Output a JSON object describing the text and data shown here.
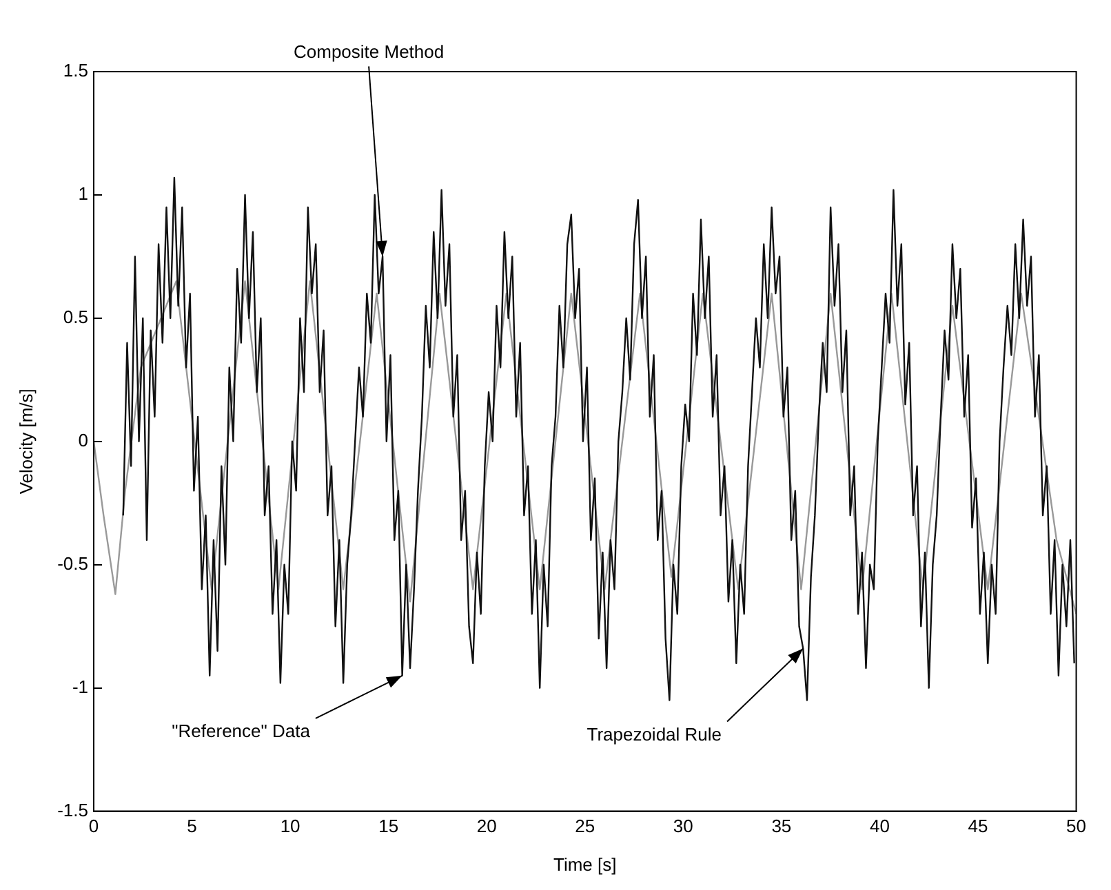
{
  "chart_data": {
    "type": "line",
    "xlabel": "Time [s]",
    "ylabel": "Velocity [m/s]",
    "xlim": [
      0,
      50
    ],
    "xticks": [
      0,
      5,
      10,
      15,
      20,
      25,
      30,
      35,
      40,
      45,
      50
    ],
    "ylim": [
      -1.5,
      1.5
    ],
    "yticks": [
      -1.5,
      -1,
      -0.5,
      0,
      0.5,
      1,
      1.5
    ],
    "grid": false,
    "legend": false,
    "marker": "none",
    "line_style": "solid",
    "annotations": [
      {
        "text": "Composite Method",
        "x": 14.7,
        "y": 0.75
      },
      {
        "text": "\"Reference\" Data",
        "x": 15.7,
        "y": -0.95
      },
      {
        "text": "Trapezoidal Rule",
        "x": 36.1,
        "y": -0.84
      }
    ],
    "series": [
      {
        "color": "#111111",
        "x": [
          1.5,
          1.7,
          1.9,
          2.1,
          2.3,
          2.5,
          2.7,
          2.9,
          3.1,
          3.3,
          3.5,
          3.7,
          3.9,
          4.1,
          4.3,
          4.5,
          4.7,
          4.9,
          5.1,
          5.3,
          5.5,
          5.7,
          5.9,
          6.1,
          6.3,
          6.5,
          6.7,
          6.9,
          7.1,
          7.3,
          7.5,
          7.7,
          7.9,
          8.1,
          8.3,
          8.5,
          8.7,
          8.9,
          9.1,
          9.3,
          9.5,
          9.7,
          9.9,
          10.1,
          10.3,
          10.5,
          10.7,
          10.9,
          11.1,
          11.3,
          11.5,
          11.7,
          11.9,
          12.1,
          12.3,
          12.5,
          12.7,
          12.9,
          13.1,
          13.3,
          13.5,
          13.7,
          13.9,
          14.1,
          14.3,
          14.5,
          14.7,
          14.9,
          15.1,
          15.3,
          15.5,
          15.7,
          15.9,
          16.1,
          16.3,
          16.5,
          16.7,
          16.9,
          17.1,
          17.3,
          17.5,
          17.7,
          17.9,
          18.1,
          18.3,
          18.5,
          18.7,
          18.9,
          19.1,
          19.3,
          19.5,
          19.7,
          19.9,
          20.1,
          20.3,
          20.5,
          20.7,
          20.9,
          21.1,
          21.3,
          21.5,
          21.7,
          21.9,
          22.1,
          22.3,
          22.5,
          22.7,
          22.9,
          23.1,
          23.3,
          23.5,
          23.7,
          23.9,
          24.1,
          24.3,
          24.5,
          24.7,
          24.9,
          25.1,
          25.3,
          25.5,
          25.7,
          25.9,
          26.1,
          26.3,
          26.5,
          26.7,
          26.9,
          27.1,
          27.3,
          27.5,
          27.7,
          27.9,
          28.1,
          28.3,
          28.5,
          28.7,
          28.9,
          29.1,
          29.3,
          29.5,
          29.7,
          29.9,
          30.1,
          30.3,
          30.5,
          30.7,
          30.9,
          31.1,
          31.3,
          31.5,
          31.7,
          31.9,
          32.1,
          32.3,
          32.5,
          32.7,
          32.9,
          33.1,
          33.3,
          33.5,
          33.7,
          33.9,
          34.1,
          34.3,
          34.5,
          34.7,
          34.9,
          35.1,
          35.3,
          35.5,
          35.7,
          35.9,
          36.1,
          36.3,
          36.5,
          36.7,
          36.9,
          37.1,
          37.3,
          37.5,
          37.7,
          37.9,
          38.1,
          38.3,
          38.5,
          38.7,
          38.9,
          39.1,
          39.3,
          39.5,
          39.7,
          39.9,
          40.1,
          40.3,
          40.5,
          40.7,
          40.9,
          41.1,
          41.3,
          41.5,
          41.7,
          41.9,
          42.1,
          42.3,
          42.5,
          42.7,
          42.9,
          43.1,
          43.3,
          43.5,
          43.7,
          43.9,
          44.1,
          44.3,
          44.5,
          44.7,
          44.9,
          45.1,
          45.3,
          45.5,
          45.7,
          45.9,
          46.1,
          46.3,
          46.5,
          46.7,
          46.9,
          47.1,
          47.3,
          47.5,
          47.7,
          47.9,
          48.1,
          48.3,
          48.5,
          48.7,
          48.9,
          49.1,
          49.3,
          49.5,
          49.7,
          49.9
        ],
        "values": [
          -0.3,
          0.4,
          -0.1,
          0.75,
          0.0,
          0.5,
          -0.4,
          0.45,
          0.1,
          0.8,
          0.4,
          0.95,
          0.5,
          1.07,
          0.55,
          0.95,
          0.3,
          0.6,
          -0.2,
          0.1,
          -0.6,
          -0.3,
          -0.95,
          -0.4,
          -0.85,
          -0.1,
          -0.5,
          0.3,
          0.0,
          0.7,
          0.4,
          1.0,
          0.5,
          0.85,
          0.2,
          0.5,
          -0.3,
          -0.1,
          -0.7,
          -0.4,
          -0.98,
          -0.5,
          -0.7,
          0.0,
          -0.2,
          0.5,
          0.2,
          0.95,
          0.6,
          0.8,
          0.2,
          0.45,
          -0.3,
          -0.1,
          -0.75,
          -0.4,
          -0.98,
          -0.5,
          -0.3,
          0.0,
          0.3,
          0.1,
          0.6,
          0.4,
          1.0,
          0.6,
          0.75,
          0.0,
          0.35,
          -0.4,
          -0.2,
          -0.95,
          -0.5,
          -0.92,
          -0.6,
          -0.2,
          0.1,
          0.55,
          0.3,
          0.85,
          0.5,
          1.02,
          0.55,
          0.8,
          0.1,
          0.35,
          -0.4,
          -0.2,
          -0.75,
          -0.9,
          -0.45,
          -0.7,
          -0.1,
          0.2,
          0.0,
          0.55,
          0.3,
          0.85,
          0.5,
          0.75,
          0.1,
          0.4,
          -0.3,
          -0.1,
          -0.7,
          -0.4,
          -1.0,
          -0.5,
          -0.75,
          -0.1,
          0.1,
          0.55,
          0.3,
          0.8,
          0.92,
          0.5,
          0.7,
          0.0,
          0.3,
          -0.4,
          -0.15,
          -0.8,
          -0.45,
          -0.92,
          -0.4,
          -0.6,
          0.0,
          0.2,
          0.5,
          0.25,
          0.8,
          0.98,
          0.5,
          0.75,
          0.1,
          0.35,
          -0.4,
          -0.2,
          -0.8,
          -1.05,
          -0.5,
          -0.7,
          -0.1,
          0.15,
          0.0,
          0.6,
          0.35,
          0.9,
          0.5,
          0.75,
          0.1,
          0.35,
          -0.3,
          -0.1,
          -0.65,
          -0.4,
          -0.9,
          -0.5,
          -0.7,
          -0.1,
          0.2,
          0.5,
          0.3,
          0.8,
          0.5,
          0.95,
          0.6,
          0.75,
          0.1,
          0.3,
          -0.4,
          -0.2,
          -0.75,
          -0.84,
          -1.05,
          -0.55,
          -0.3,
          0.1,
          0.4,
          0.2,
          0.95,
          0.55,
          0.8,
          0.2,
          0.45,
          -0.3,
          -0.1,
          -0.7,
          -0.45,
          -0.92,
          -0.5,
          -0.6,
          0.0,
          0.3,
          0.6,
          0.4,
          1.02,
          0.55,
          0.8,
          0.15,
          0.4,
          -0.3,
          -0.1,
          -0.75,
          -0.45,
          -1.0,
          -0.5,
          -0.3,
          0.1,
          0.45,
          0.25,
          0.8,
          0.5,
          0.7,
          0.1,
          0.35,
          -0.35,
          -0.15,
          -0.7,
          -0.45,
          -0.9,
          -0.5,
          -0.7,
          0.0,
          0.3,
          0.55,
          0.35,
          0.8,
          0.5,
          0.9,
          0.55,
          0.75,
          0.1,
          0.35,
          -0.3,
          -0.1,
          -0.7,
          -0.4,
          -0.95,
          -0.5,
          -0.75,
          -0.4,
          -0.9
        ]
      },
      {
        "color": "#999999",
        "x": [
          0,
          0.5,
          1.1,
          1.6,
          2.4,
          4.2,
          6.0,
          7.7,
          9.4,
          11,
          12.7,
          14.4,
          16.1,
          17.6,
          19.3,
          21,
          22.7,
          24.3,
          26,
          27.8,
          29.4,
          31,
          32.8,
          34.5,
          36,
          37.5,
          39.1,
          40.6,
          42.2,
          43.7,
          45.5,
          47.2,
          49,
          50
        ],
        "values": [
          0,
          -0.3,
          -0.62,
          -0.2,
          0.3,
          0.65,
          -0.6,
          0.65,
          -0.6,
          0.65,
          -0.6,
          0.6,
          -0.65,
          0.6,
          -0.6,
          0.6,
          -0.6,
          0.6,
          -0.6,
          0.6,
          -0.55,
          0.6,
          -0.6,
          0.6,
          -0.6,
          0.6,
          -0.6,
          0.6,
          -0.6,
          0.55,
          -0.6,
          0.6,
          -0.4,
          -0.7
        ]
      }
    ]
  }
}
